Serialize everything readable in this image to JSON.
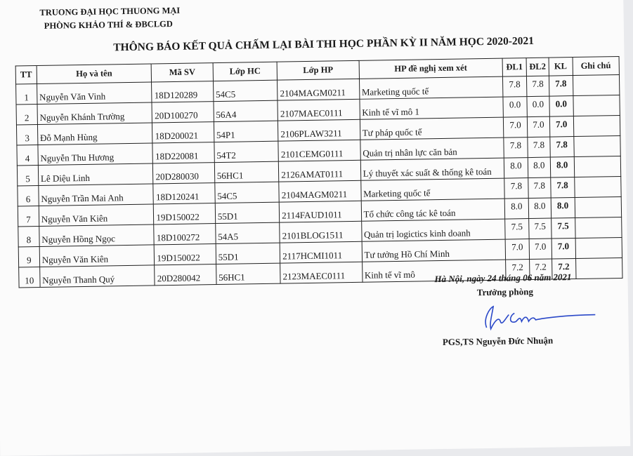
{
  "header": {
    "university": "TRUONG ĐẠI HỌC THUONG MẠI",
    "department": "PHÒNG KHẢO THÍ & ĐBCLGD"
  },
  "title": "THÔNG BÁO KẾT QUẢ CHẤM LẠI BÀI THI HỌC PHẦN KỲ II NĂM HỌC 2020-2021",
  "table": {
    "columns": [
      "TT",
      "Họ và tên",
      "Mã SV",
      "Lớp HC",
      "Lớp HP",
      "HP đề nghị xem xét",
      "ĐL1",
      "ĐL2",
      "KL",
      "Ghi chú"
    ],
    "rows": [
      [
        "1",
        "Nguyễn Văn Vinh",
        "18D120289",
        "54C5",
        "2104MAGM0211",
        "Marketing quốc tế",
        "7.8",
        "7.8",
        "7.8",
        ""
      ],
      [
        "2",
        "Nguyễn Khánh Trường",
        "20D100270",
        "56A4",
        "2107MAEC0111",
        "Kinh tế vĩ mô 1",
        "0.0",
        "0.0",
        "0.0",
        ""
      ],
      [
        "3",
        "Đỗ Mạnh Hùng",
        "18D200021",
        "54P1",
        "2106PLAW3211",
        "Tư pháp quốc tế",
        "7.0",
        "7.0",
        "7.0",
        ""
      ],
      [
        "4",
        "Nguyễn Thu Hương",
        "18D220081",
        "54T2",
        "2101CEMG0111",
        "Quản trị nhân lực căn bản",
        "7.8",
        "7.8",
        "7.8",
        ""
      ],
      [
        "5",
        "Lê Diệu Linh",
        "20D280030",
        "56HC1",
        "2126AMAT0111",
        "Lý thuyết xác suất & thống kê toán",
        "8.0",
        "8.0",
        "8.0",
        ""
      ],
      [
        "6",
        "Nguyễn Trần Mai Anh",
        "18D120241",
        "54C5",
        "2104MAGM0211",
        "Marketing quốc tế",
        "7.8",
        "7.8",
        "7.8",
        ""
      ],
      [
        "7",
        "Nguyễn Văn Kiên",
        "19D150022",
        "55D1",
        "2114FAUD1011",
        "Tổ chức công tác kê toán",
        "8.0",
        "8.0",
        "8.0",
        ""
      ],
      [
        "8",
        "Nguyễn Hồng Ngọc",
        "18D100272",
        "54A5",
        "2101BLOG1511",
        "Quản trị logictics kinh doanh",
        "7.5",
        "7.5",
        "7.5",
        ""
      ],
      [
        "9",
        "Nguyễn Văn Kiên",
        "19D150022",
        "55D1",
        "2117HCMI1011",
        "Tư tưởng Hồ Chí Minh",
        "7.0",
        "7.0",
        "7.0",
        ""
      ],
      [
        "10",
        "Nguyễn Thanh Quý",
        "20D280042",
        "56HC1",
        "2123MAEC0111",
        "Kinh tế vĩ mô",
        "7.2",
        "7.2",
        "7.2",
        ""
      ]
    ]
  },
  "footer": {
    "place_date": "Hà Nội, ngày 24  tháng 06 năm 2021",
    "position": "Trưởng phòng",
    "signer": "PGS,TS Nguyễn Đức Nhuận",
    "signature_color": "#2a48c8"
  }
}
